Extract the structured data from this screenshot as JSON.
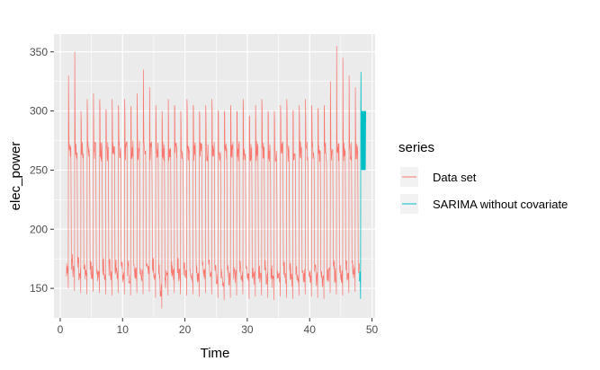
{
  "chart_data": {
    "type": "line",
    "title": "",
    "xlabel": "Time",
    "ylabel": "elec_power",
    "xlim": [
      -1,
      50.5
    ],
    "ylim": [
      125,
      365
    ],
    "x_ticks": [
      0,
      10,
      20,
      30,
      40,
      50
    ],
    "y_ticks": [
      150,
      200,
      250,
      300,
      350
    ],
    "grid": true,
    "legend": {
      "title": "series",
      "position": "right"
    },
    "series": [
      {
        "name": "Data set",
        "color": "#F8766D",
        "x_range": [
          1,
          48
        ],
        "points_per_unit": 24,
        "daily_high": [
          330,
          350,
          300,
          310,
          315,
          310,
          300,
          310,
          305,
          310,
          300,
          315,
          335,
          320,
          305,
          300,
          310,
          305,
          300,
          310,
          305,
          300,
          305,
          310,
          300,
          300,
          305,
          300,
          310,
          295,
          305,
          310,
          300,
          300,
          305,
          310,
          300,
          305,
          310,
          305,
          300,
          305,
          325,
          355,
          345,
          330,
          320,
          335
        ],
        "daily_low": [
          150,
          148,
          146,
          145,
          147,
          146,
          145,
          144,
          146,
          145,
          144,
          146,
          145,
          147,
          142,
          133,
          144,
          146,
          145,
          144,
          145,
          143,
          146,
          145,
          142,
          140,
          142,
          144,
          145,
          141,
          143,
          144,
          142,
          140,
          143,
          142,
          141,
          144,
          145,
          143,
          142,
          141,
          146,
          145,
          144,
          146,
          147,
          150
        ],
        "midday_level": 265
      },
      {
        "name": "SARIMA without covariate",
        "color": "#00BFC4",
        "x_range": [
          48,
          49
        ],
        "values_summary": {
          "low": 141,
          "high": 333,
          "mid": 270
        }
      }
    ]
  }
}
